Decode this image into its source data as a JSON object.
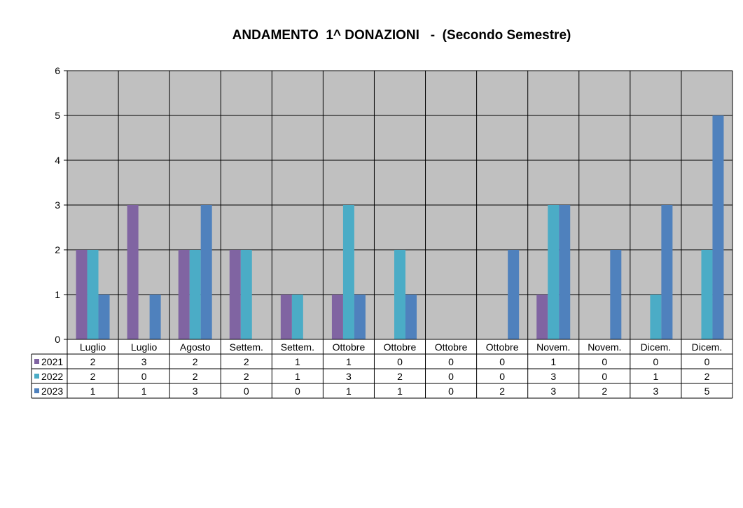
{
  "chart_data": {
    "type": "bar",
    "title": "ANDAMENTO  1^ DONAZIONI   -  (Secondo Semestre)",
    "categories": [
      "Luglio",
      "Luglio",
      "Agosto",
      "Settem.",
      "Settem.",
      "Ottobre",
      "Ottobre",
      "Ottobre",
      "Ottobre",
      "Novem.",
      "Novem.",
      "Dicem.",
      "Dicem."
    ],
    "series": [
      {
        "name": "2021",
        "color": "#8064a2",
        "values": [
          2,
          3,
          2,
          2,
          1,
          1,
          0,
          0,
          0,
          1,
          0,
          0,
          0
        ]
      },
      {
        "name": "2022",
        "color": "#4bacc6",
        "values": [
          2,
          0,
          2,
          2,
          1,
          3,
          2,
          0,
          0,
          3,
          0,
          1,
          2
        ]
      },
      {
        "name": "2023",
        "color": "#4f81bd",
        "values": [
          1,
          1,
          3,
          0,
          0,
          1,
          1,
          0,
          2,
          3,
          2,
          3,
          5
        ]
      }
    ],
    "ylim": [
      0,
      6
    ],
    "yticks": [
      0,
      1,
      2,
      3,
      4,
      5,
      6
    ],
    "grid": true,
    "plot_background": "#c0c0c0",
    "legend": "data table"
  }
}
